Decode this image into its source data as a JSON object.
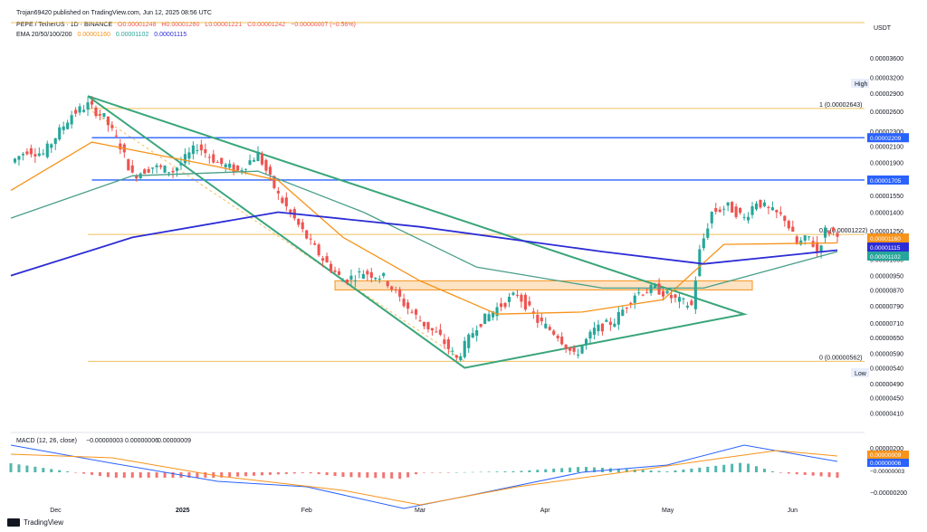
{
  "header": {
    "publisher": "Trojan69420 published on TradingView.com, Jun 12, 2025 08:56 UTC",
    "pair": "PEPE / TetherUS · 1D · BINANCE",
    "open": "O0.00001248",
    "high": "H0.00001260",
    "low": "L0.00001221",
    "close": "C0.00001242",
    "change": "−0.00000007 (−0.56%)",
    "ema_label": "EMA 20/50/100/200",
    "ema_20": "0.00001160",
    "ema_50": "0.00001102",
    "ema_100": "0.00001115"
  },
  "price_axis": {
    "currency": "USDT",
    "ticks": [
      "0.00003600",
      "0.00003200",
      "0.00002900",
      "0.00002600",
      "0.00002300",
      "0.00002100",
      "0.00001900",
      "0.00001700",
      "0.00001550",
      "0.00001400",
      "0.00001250",
      "0.00001150",
      "0.00001050",
      "0.00000950",
      "0.00000870",
      "0.00000790",
      "0.00000710",
      "0.00000650",
      "0.00000590",
      "0.00000540",
      "0.00000490",
      "0.00000450",
      "0.00000410"
    ],
    "high_label": "High",
    "low_label": "Low",
    "tags": [
      {
        "text": "0.00002209",
        "color": "#2962ff"
      },
      {
        "text": "0.00001705",
        "color": "#2962ff"
      },
      {
        "text": "0.00001160",
        "color": "#f7931a"
      },
      {
        "text": "0.00001115",
        "color": "#2c2cd6"
      },
      {
        "text": "0.00001102",
        "color": "#26a69a"
      }
    ]
  },
  "fib_labels": {
    "top": "1 (0.00002643)",
    "mid": "0.5 (0.00001222)",
    "bottom": "0 (0.00000562)"
  },
  "time_axis": [
    "Dec",
    "2025",
    "Feb",
    "Mar",
    "Apr",
    "May",
    "Jun"
  ],
  "macd": {
    "label": "MACD (12, 26, close)",
    "hist": "−0.00000003",
    "macd_value": "0.00000006",
    "signal_value": "0.00000009",
    "ticks": [
      "0.00000200",
      "−0.00000200"
    ],
    "tags": [
      {
        "text": "0.00000009",
        "color": "#f7931a"
      },
      {
        "text": "0.00000006",
        "color": "#2962ff"
      },
      {
        "text": "−0.00000003",
        "color": "#ffffff"
      }
    ]
  },
  "branding": "TradingView",
  "colors": {
    "up": "#26a69a",
    "down": "#ef5350",
    "ema20": "#f7931a",
    "ema50": "#4a9e8a",
    "ema200": "#2c2cd6",
    "triangle": "#3aa57a",
    "fib": "#f0c060",
    "hline": "#2962ff"
  },
  "chart_data": {
    "type": "candlestick",
    "title": "PEPE / TetherUS · 1D · BINANCE",
    "ylabel": "USDT",
    "ylim": [
      3.8e-06,
      4e-06
    ],
    "y_scale": "log",
    "x_range": [
      "2024-11-20",
      "2025-06-12"
    ],
    "legend": "top-left",
    "grid": false,
    "price_path": [
      [
        "2024-11-20",
        1.9e-05
      ],
      [
        "2024-11-24",
        2.05e-05
      ],
      [
        "2024-11-28",
        2e-05
      ],
      [
        "2024-12-02",
        2.3e-05
      ],
      [
        "2024-12-05",
        2.55e-05
      ],
      [
        "2024-12-09",
        2.7e-05
      ],
      [
        "2024-12-13",
        2.5e-05
      ],
      [
        "2024-12-17",
        2.1e-05
      ],
      [
        "2024-12-20",
        1.75e-05
      ],
      [
        "2024-12-25",
        1.85e-05
      ],
      [
        "2024-12-30",
        1.8e-05
      ],
      [
        "2025-01-05",
        2.1e-05
      ],
      [
        "2025-01-10",
        1.9e-05
      ],
      [
        "2025-01-15",
        1.8e-05
      ],
      [
        "2025-01-20",
        2e-05
      ],
      [
        "2025-01-25",
        1.55e-05
      ],
      [
        "2025-02-01",
        1.2e-05
      ],
      [
        "2025-02-05",
        1.05e-05
      ],
      [
        "2025-02-10",
        9.2e-06
      ],
      [
        "2025-02-15",
        9.7e-06
      ],
      [
        "2025-02-20",
        9.4e-06
      ],
      [
        "2025-02-25",
        8e-06
      ],
      [
        "2025-03-01",
        7.2e-06
      ],
      [
        "2025-03-06",
        6.5e-06
      ],
      [
        "2025-03-10",
        5.7e-06
      ],
      [
        "2025-03-15",
        7e-06
      ],
      [
        "2025-03-20",
        7.8e-06
      ],
      [
        "2025-03-25",
        8.5e-06
      ],
      [
        "2025-03-30",
        7.2e-06
      ],
      [
        "2025-04-04",
        6.6e-06
      ],
      [
        "2025-04-08",
        5.8e-06
      ],
      [
        "2025-04-13",
        6.8e-06
      ],
      [
        "2025-04-18",
        7.2e-06
      ],
      [
        "2025-04-23",
        8.5e-06
      ],
      [
        "2025-04-28",
        8.8e-06
      ],
      [
        "2025-05-03",
        8.2e-06
      ],
      [
        "2025-05-07",
        7.9e-06
      ],
      [
        "2025-05-09",
        1.1e-05
      ],
      [
        "2025-05-12",
        1.4e-05
      ],
      [
        "2025-05-16",
        1.45e-05
      ],
      [
        "2025-05-20",
        1.35e-05
      ],
      [
        "2025-05-23",
        1.5e-05
      ],
      [
        "2025-05-26",
        1.42e-05
      ],
      [
        "2025-05-30",
        1.35e-05
      ],
      [
        "2025-06-02",
        1.15e-05
      ],
      [
        "2025-06-05",
        1.2e-05
      ],
      [
        "2025-06-07",
        1.1e-05
      ],
      [
        "2025-06-09",
        1.25e-05
      ],
      [
        "2025-06-12",
        1.24e-05
      ]
    ],
    "ema20": [
      [
        "2024-11-20",
        1.6e-05
      ],
      [
        "2024-12-10",
        2.15e-05
      ],
      [
        "2024-12-25",
        2e-05
      ],
      [
        "2025-01-10",
        1.85e-05
      ],
      [
        "2025-01-25",
        1.7e-05
      ],
      [
        "2025-02-10",
        1.2e-05
      ],
      [
        "2025-03-01",
        9.2e-06
      ],
      [
        "2025-03-20",
        7.5e-06
      ],
      [
        "2025-04-10",
        7.6e-06
      ],
      [
        "2025-04-30",
        8.2e-06
      ],
      [
        "2025-05-15",
        1.15e-05
      ],
      [
        "2025-06-12",
        1.16e-05
      ]
    ],
    "ema50": [
      [
        "2024-11-20",
        1.35e-05
      ],
      [
        "2024-12-20",
        1.75e-05
      ],
      [
        "2025-01-20",
        1.8e-05
      ],
      [
        "2025-02-15",
        1.4e-05
      ],
      [
        "2025-03-15",
        1e-05
      ],
      [
        "2025-04-15",
        8.8e-06
      ],
      [
        "2025-05-10",
        8.8e-06
      ],
      [
        "2025-06-12",
        1.1e-05
      ]
    ],
    "ema200": [
      [
        "2024-11-20",
        9.5e-06
      ],
      [
        "2024-12-20",
        1.2e-05
      ],
      [
        "2025-01-25",
        1.4e-05
      ],
      [
        "2025-03-01",
        1.28e-05
      ],
      [
        "2025-04-15",
        1.1e-05
      ],
      [
        "2025-05-10",
        1.02e-05
      ],
      [
        "2025-06-12",
        1.11e-05
      ]
    ],
    "fib_levels": [
      2.643e-05,
      1.222e-05,
      5.62e-06
    ],
    "horizontal_lines": [
      2.209e-05,
      1.705e-05
    ],
    "support_zone": [
      8.7e-06,
      9.2e-06
    ],
    "triangle": [
      [
        "2024-12-09",
        2.85e-05
      ],
      [
        "2025-05-20",
        7.5e-06
      ],
      [
        "2025-03-12",
        5.4e-06
      ]
    ],
    "macd_series": {
      "macd": [
        [
          "2024-11-20",
          1.5e-07
        ],
        [
          "2024-12-15",
          5e-08
        ],
        [
          "2025-01-10",
          -5e-08
        ],
        [
          "2025-02-01",
          -8e-08
        ],
        [
          "2025-02-25",
          -2e-07
        ],
        [
          "2025-03-15",
          -1.2e-07
        ],
        [
          "2025-04-10",
          0.0
        ],
        [
          "2025-05-01",
          4e-08
        ],
        [
          "2025-05-20",
          1.5e-07
        ],
        [
          "2025-06-12",
          6e-08
        ]
      ],
      "signal": [
        [
          "2024-11-20",
          1e-07
        ],
        [
          "2024-12-15",
          8e-08
        ],
        [
          "2025-01-10",
          -2e-08
        ],
        [
          "2025-02-10",
          -1e-07
        ],
        [
          "2025-03-01",
          -1.8e-07
        ],
        [
          "2025-03-25",
          -8e-08
        ],
        [
          "2025-04-20",
          0.0
        ],
        [
          "2025-05-15",
          8e-08
        ],
        [
          "2025-05-28",
          1.2e-07
        ],
        [
          "2025-06-12",
          9e-08
        ]
      ]
    }
  }
}
